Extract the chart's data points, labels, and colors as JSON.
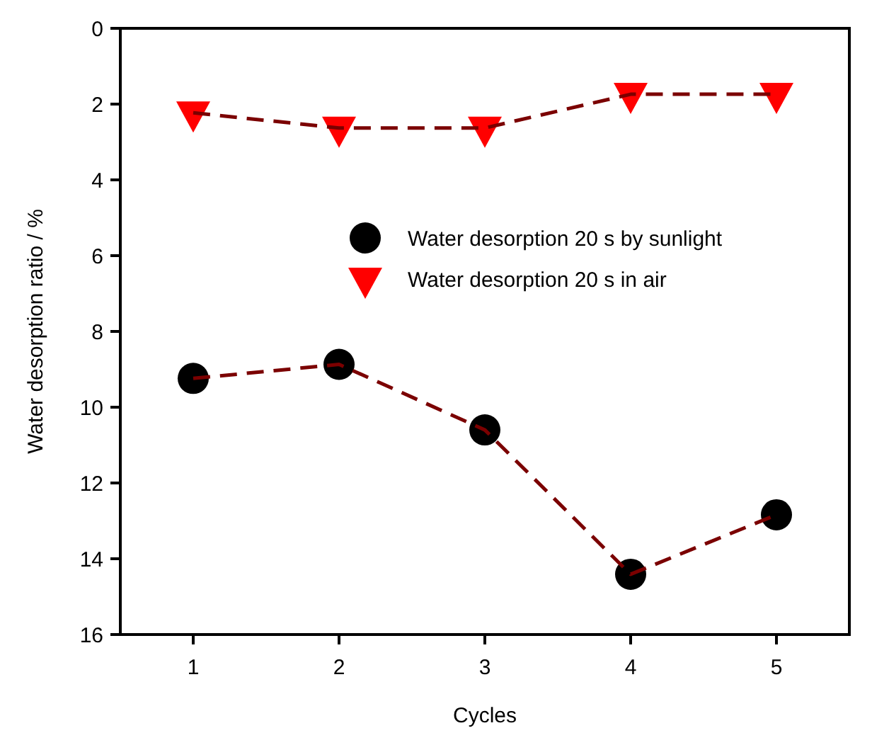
{
  "chart_data": {
    "type": "line",
    "xlabel": "Cycles",
    "ylabel": "Water desorption ratio / %",
    "x": [
      1,
      2,
      3,
      4,
      5
    ],
    "xlim": [
      0.5,
      5.5
    ],
    "xticks": [
      1,
      2,
      3,
      4,
      5
    ],
    "ylim": [
      16,
      0
    ],
    "yticks": [
      0,
      2,
      4,
      6,
      8,
      10,
      12,
      14,
      16
    ],
    "series": [
      {
        "name": "Water desorption 20 s by sunlight",
        "color": "#000000",
        "marker": "circle",
        "values": [
          9.24,
          8.87,
          10.6,
          14.41,
          12.84
        ]
      },
      {
        "name": "Water desorption 20 s in air",
        "color": "#ff0000",
        "marker": "triangle",
        "values": [
          2.23,
          2.63,
          2.63,
          1.74,
          1.74
        ]
      }
    ],
    "line_style": "dashed",
    "legend": "top",
    "grid": false
  }
}
